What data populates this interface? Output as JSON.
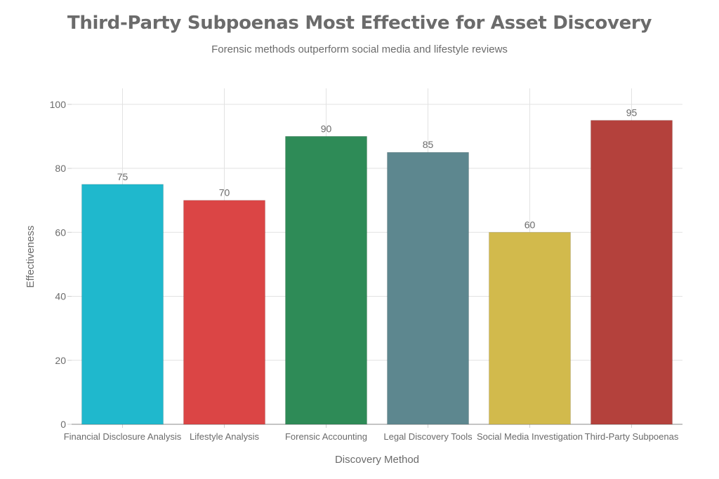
{
  "chart_data": {
    "type": "bar",
    "title": "Third-Party Subpoenas Most Effective for Asset Discovery",
    "subtitle": "Forensic methods outperform social media and lifestyle reviews",
    "xlabel": "Discovery Method",
    "ylabel": "Effectiveness",
    "categories": [
      "Financial Disclosure Analysis",
      "Lifestyle Analysis",
      "Forensic Accounting",
      "Legal Discovery Tools",
      "Social Media Investigation",
      "Third-Party Subpoenas"
    ],
    "values": [
      75,
      70,
      90,
      85,
      60,
      95
    ],
    "colors": [
      "#1FB8CD",
      "#DB4545",
      "#2E8B57",
      "#5D878F",
      "#D2BA4C",
      "#B4413C"
    ],
    "ylim": [
      0,
      105
    ],
    "yticks": [
      0,
      20,
      40,
      60,
      80,
      100
    ],
    "grid": true,
    "legend": "none"
  }
}
